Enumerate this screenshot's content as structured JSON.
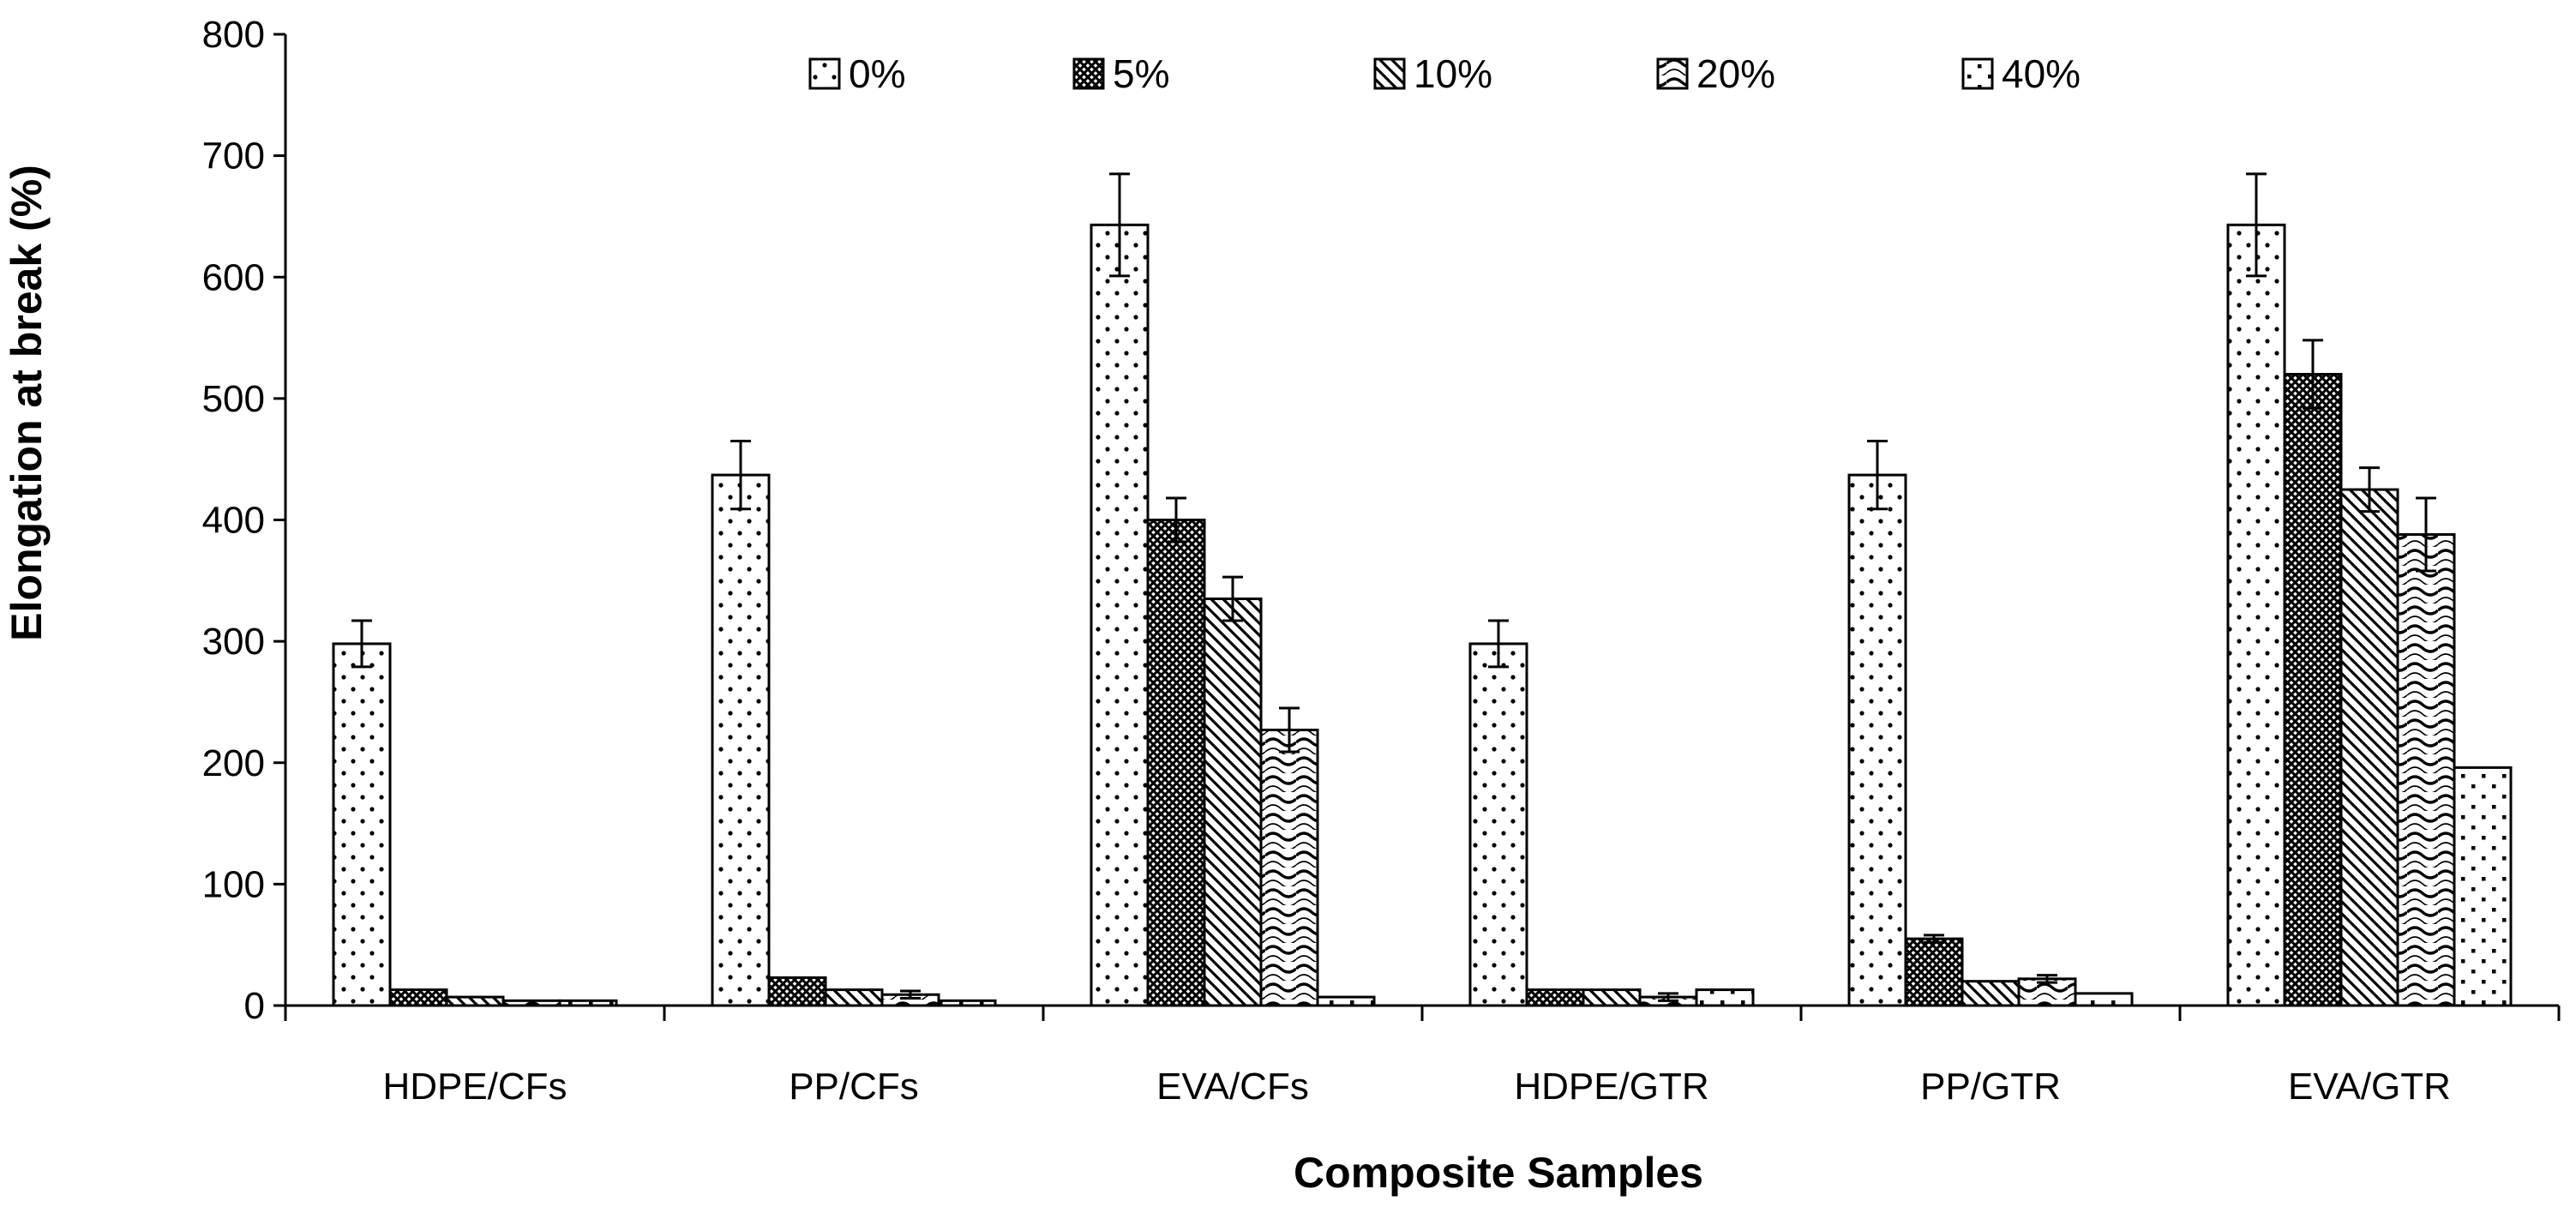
{
  "chart_data": {
    "type": "bar",
    "title": "",
    "xlabel": "Composite Samples",
    "ylabel": "Elongation at break (%)",
    "ylim": [
      0,
      800
    ],
    "yticks": [
      0,
      100,
      200,
      300,
      400,
      500,
      600,
      700,
      800
    ],
    "categories": [
      "HDPE/CFs",
      "PP/CFs",
      "EVA/CFs",
      "HDPE/GTR",
      "PP/GTR",
      "EVA/GTR"
    ],
    "legend_position": "top-center",
    "series": [
      {
        "name": "0%",
        "pattern": "dots-sparse",
        "values": [
          298,
          437,
          643,
          298,
          437,
          643
        ],
        "errors": [
          19,
          28,
          42,
          19,
          28,
          42
        ]
      },
      {
        "name": "5%",
        "pattern": "crosshatch",
        "values": [
          13,
          23,
          400,
          13,
          55,
          520
        ],
        "errors": [
          0,
          0,
          18,
          0,
          3,
          28
        ]
      },
      {
        "name": "10%",
        "pattern": "diagonal",
        "values": [
          7,
          13,
          335,
          13,
          20,
          425
        ],
        "errors": [
          0,
          0,
          18,
          0,
          0,
          18
        ]
      },
      {
        "name": "20%",
        "pattern": "waves",
        "values": [
          4,
          9,
          227,
          7,
          22,
          388
        ],
        "errors": [
          0,
          3,
          18,
          3,
          3,
          30
        ]
      },
      {
        "name": "40%",
        "pattern": "dots-dense",
        "values": [
          4,
          4,
          7,
          13,
          10,
          196
        ],
        "errors": [
          0,
          0,
          0,
          0,
          0,
          0
        ]
      }
    ]
  }
}
